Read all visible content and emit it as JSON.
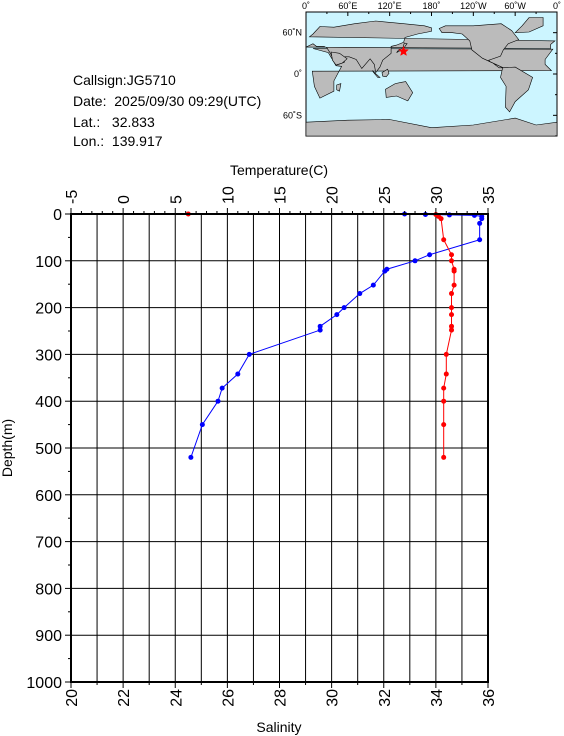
{
  "station": {
    "callsign": "Callsign:JG5710",
    "date": "Date:  2025/09/30 09:29(UTC)",
    "lat": "Lat.:   32.833",
    "lon": "Lon.:  139.917"
  },
  "map": {
    "top_ticks": [
      "0˚",
      "60˚E",
      "120˚E",
      "180˚",
      "120˚W",
      "60˚W",
      "0˚"
    ],
    "lat_ticks": [
      "60˚N",
      "0˚",
      "60˚S"
    ],
    "ocean_color": "#ccf5ff",
    "land_color": "#bbbbbb",
    "marker_color": "#ff0000",
    "marker": {
      "lat": 32.833,
      "lon": 139.917
    }
  },
  "chart_data": {
    "type": "line",
    "top_axis_label": "Temperature(C)",
    "bottom_axis_label": "Salinity",
    "ylabel": "Depth(m)",
    "temperature_range": [
      -5,
      35
    ],
    "temperature_ticks": [
      -5,
      0,
      5,
      10,
      15,
      20,
      25,
      30,
      35
    ],
    "salinity_range": [
      20,
      36
    ],
    "salinity_ticks": [
      20,
      22,
      24,
      26,
      28,
      30,
      32,
      34,
      36
    ],
    "depth_range": [
      0,
      1000
    ],
    "depth_ticks": [
      0,
      100,
      200,
      300,
      400,
      500,
      600,
      700,
      800,
      900,
      1000
    ],
    "grid": true,
    "series": [
      {
        "axis": "temperature",
        "color": "#0000ff",
        "points": [
          [
            27.0,
            0
          ],
          [
            29.0,
            1
          ],
          [
            31.3,
            2
          ],
          [
            33.7,
            3
          ],
          [
            34.4,
            5
          ],
          [
            34.4,
            10
          ],
          [
            34.2,
            20
          ],
          [
            34.2,
            55
          ],
          [
            29.4,
            87
          ],
          [
            28.0,
            100
          ],
          [
            25.3,
            118
          ],
          [
            25.1,
            122
          ],
          [
            24.0,
            152
          ],
          [
            22.7,
            170
          ],
          [
            21.2,
            200
          ],
          [
            20.5,
            215
          ],
          [
            18.9,
            240
          ],
          [
            18.9,
            248
          ],
          [
            12.1,
            300
          ],
          [
            11.0,
            342
          ],
          [
            9.5,
            372
          ],
          [
            9.1,
            400
          ],
          [
            7.6,
            450
          ],
          [
            6.5,
            520
          ]
        ]
      },
      {
        "axis": "salinity",
        "color": "#ff0000",
        "points": [
          [
            24.5,
            0
          ],
          [
            30.0,
            0
          ],
          [
            33.0,
            0
          ],
          [
            34.0,
            1
          ],
          [
            34.1,
            5
          ],
          [
            34.2,
            10
          ],
          [
            34.3,
            55
          ],
          [
            34.6,
            87
          ],
          [
            34.6,
            100
          ],
          [
            34.7,
            118
          ],
          [
            34.7,
            122
          ],
          [
            34.7,
            152
          ],
          [
            34.6,
            170
          ],
          [
            34.6,
            200
          ],
          [
            34.6,
            215
          ],
          [
            34.6,
            240
          ],
          [
            34.6,
            248
          ],
          [
            34.4,
            300
          ],
          [
            34.4,
            342
          ],
          [
            34.3,
            372
          ],
          [
            34.3,
            400
          ],
          [
            34.3,
            450
          ],
          [
            34.3,
            520
          ]
        ]
      }
    ]
  }
}
